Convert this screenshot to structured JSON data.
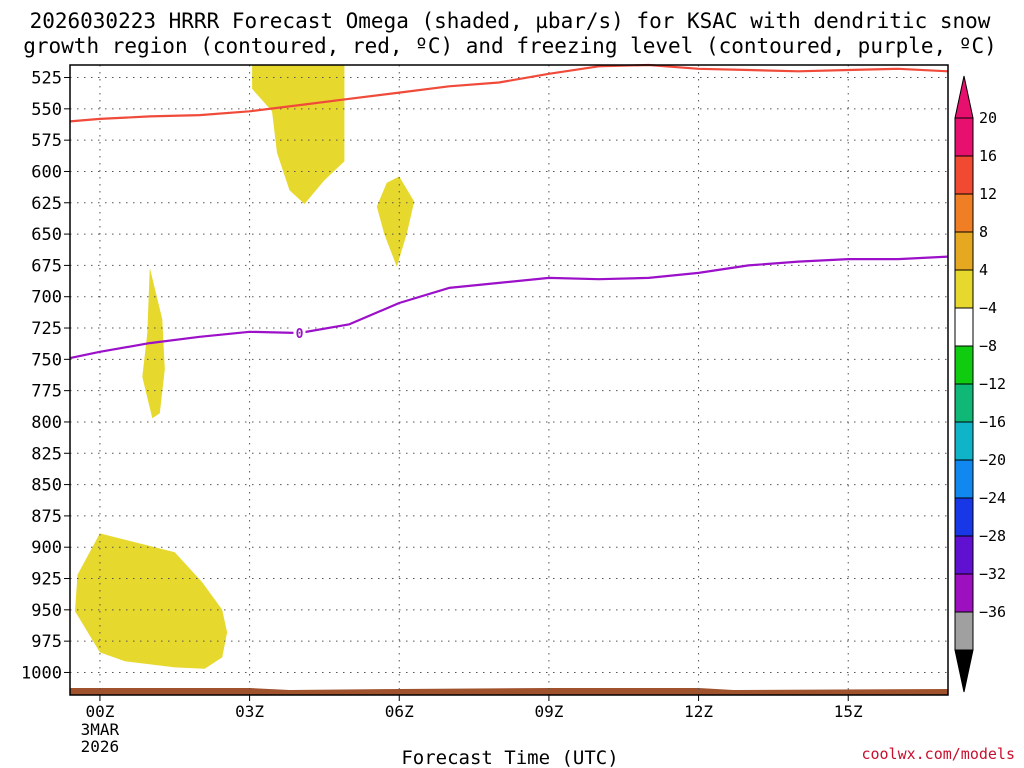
{
  "chart_data": {
    "type": "contour",
    "title_line1": "2026030223 HRRR Forecast Omega (shaded, µbar/s) for KSAC with dendritic snow",
    "title_line2": "growth region (contoured, red, ºC) and freezing level (contoured, purple, ºC)",
    "xlabel": "Forecast Time (UTC)",
    "credit": "coolwx.com/models",
    "xlim_hours": [
      -0.6,
      17.0
    ],
    "ylim_hpa": [
      515,
      1018
    ],
    "y_ticks": [
      525,
      550,
      575,
      600,
      625,
      650,
      675,
      700,
      725,
      750,
      775,
      800,
      825,
      850,
      875,
      900,
      925,
      950,
      975,
      1000
    ],
    "x_ticks": [
      {
        "hour": 0,
        "label": "00Z",
        "sub": [
          "3MAR",
          "2026"
        ]
      },
      {
        "hour": 3,
        "label": "03Z",
        "sub": []
      },
      {
        "hour": 6,
        "label": "06Z",
        "sub": []
      },
      {
        "hour": 9,
        "label": "09Z",
        "sub": []
      },
      {
        "hour": 12,
        "label": "12Z",
        "sub": []
      },
      {
        "hour": 15,
        "label": "15Z",
        "sub": []
      }
    ],
    "colorbar": {
      "levels": [
        {
          "label": "20",
          "color": "#e8106e"
        },
        {
          "label": "16",
          "color": "#f04a32"
        },
        {
          "label": "12",
          "color": "#f07e24"
        },
        {
          "label": "8",
          "color": "#e6a820"
        },
        {
          "label": "4",
          "color": "#e6d82c"
        },
        {
          "label": "-4",
          "color": "#ffffff"
        },
        {
          "label": "-8",
          "color": "#10cc10"
        },
        {
          "label": "-12",
          "color": "#10b878"
        },
        {
          "label": "-16",
          "color": "#10b4c8"
        },
        {
          "label": "-20",
          "color": "#1088f0"
        },
        {
          "label": "-24",
          "color": "#1838e8"
        },
        {
          "label": "-28",
          "color": "#6010d0"
        },
        {
          "label": "-32",
          "color": "#9c10c0"
        },
        {
          "label": "-36",
          "color": "#a0a0a0"
        }
      ],
      "top_arrow_color": "#e8106e",
      "bottom_arrow_color": "#000000"
    },
    "shaded_color": "#e6d82c",
    "omega_regions": [
      {
        "name": "upper-lobe",
        "points": [
          [
            3.05,
            515
          ],
          [
            3.75,
            515
          ],
          [
            4.9,
            515
          ],
          [
            4.9,
            592
          ],
          [
            4.5,
            607
          ],
          [
            4.1,
            626
          ],
          [
            3.8,
            615
          ],
          [
            3.55,
            585
          ],
          [
            3.45,
            552
          ],
          [
            3.05,
            534
          ]
        ]
      },
      {
        "name": "small-lobe",
        "points": [
          [
            6.0,
            604
          ],
          [
            6.3,
            624
          ],
          [
            6.15,
            650
          ],
          [
            5.95,
            676
          ],
          [
            5.7,
            650
          ],
          [
            5.55,
            628
          ],
          [
            5.75,
            609
          ]
        ]
      },
      {
        "name": "mid-lobe",
        "points": [
          [
            1.0,
            677
          ],
          [
            1.25,
            718
          ],
          [
            1.3,
            758
          ],
          [
            1.2,
            793
          ],
          [
            1.05,
            797
          ],
          [
            0.85,
            764
          ],
          [
            0.95,
            729
          ]
        ]
      },
      {
        "name": "low-lobe",
        "points": [
          [
            0.0,
            889
          ],
          [
            1.5,
            904
          ],
          [
            2.05,
            928
          ],
          [
            2.45,
            950
          ],
          [
            2.55,
            968
          ],
          [
            2.45,
            988
          ],
          [
            2.1,
            997
          ],
          [
            1.5,
            996
          ],
          [
            0.5,
            991
          ],
          [
            0.0,
            984
          ],
          [
            -0.5,
            951
          ],
          [
            -0.45,
            922
          ]
        ]
      }
    ],
    "snow_growth_line": {
      "label": "red contour",
      "color": "#f04a3a",
      "points": [
        [
          -0.6,
          560
        ],
        [
          0,
          558
        ],
        [
          1,
          556
        ],
        [
          2,
          555
        ],
        [
          3,
          552
        ],
        [
          4,
          547
        ],
        [
          5,
          542
        ],
        [
          6,
          537
        ],
        [
          7,
          532
        ],
        [
          8,
          529
        ],
        [
          9,
          522
        ],
        [
          10,
          516
        ],
        [
          11,
          515
        ],
        [
          12,
          518
        ],
        [
          13,
          519
        ],
        [
          14,
          520
        ],
        [
          15,
          519
        ],
        [
          16,
          518
        ],
        [
          17,
          520
        ]
      ]
    },
    "freezing_line": {
      "label": "0",
      "color": "#9b10c8",
      "points": [
        [
          -0.6,
          749
        ],
        [
          0,
          744
        ],
        [
          1,
          737
        ],
        [
          2,
          732
        ],
        [
          3,
          728
        ],
        [
          4,
          729
        ],
        [
          5,
          722
        ],
        [
          6,
          705
        ],
        [
          7,
          693
        ],
        [
          8,
          689
        ],
        [
          9,
          685
        ],
        [
          10,
          686
        ],
        [
          11,
          685
        ],
        [
          12,
          681
        ],
        [
          13,
          675
        ],
        [
          14,
          672
        ],
        [
          15,
          670
        ],
        [
          16,
          670
        ],
        [
          17,
          668
        ]
      ]
    },
    "freezing_label_pos": {
      "hour": 4.0,
      "hpa": 729
    },
    "terrain_color": "#a0522d"
  }
}
